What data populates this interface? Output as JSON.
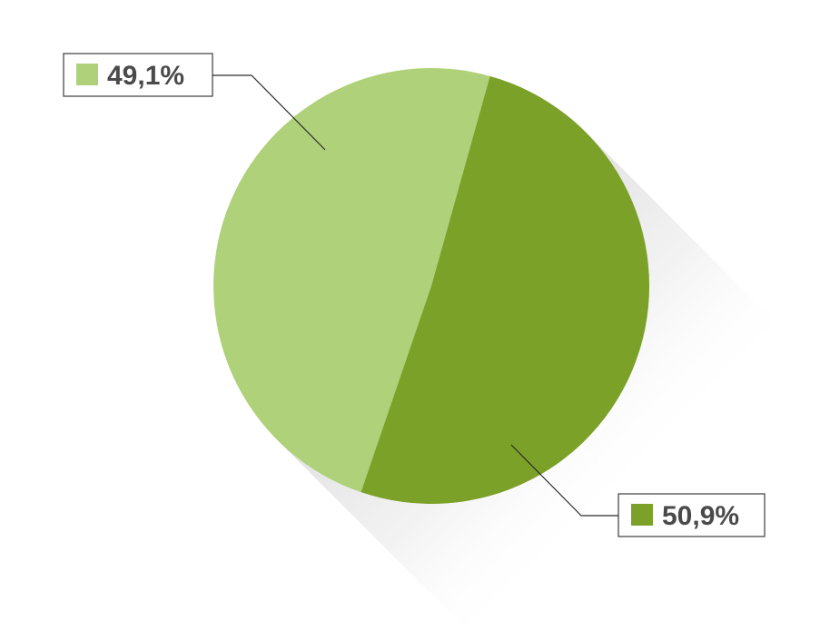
{
  "chart_data": {
    "type": "pie",
    "slices": [
      {
        "label": "49,1%",
        "value": 49.1,
        "color": "#aed17a"
      },
      {
        "label": "50,9%",
        "value": 50.9,
        "color": "#7ba128"
      }
    ],
    "legend": "none",
    "grid": false
  },
  "colors": {
    "light_green": "#aed17a",
    "dark_green": "#7ba128",
    "shadow": "#e6e6e6",
    "label_text": "#4a4a4a"
  }
}
